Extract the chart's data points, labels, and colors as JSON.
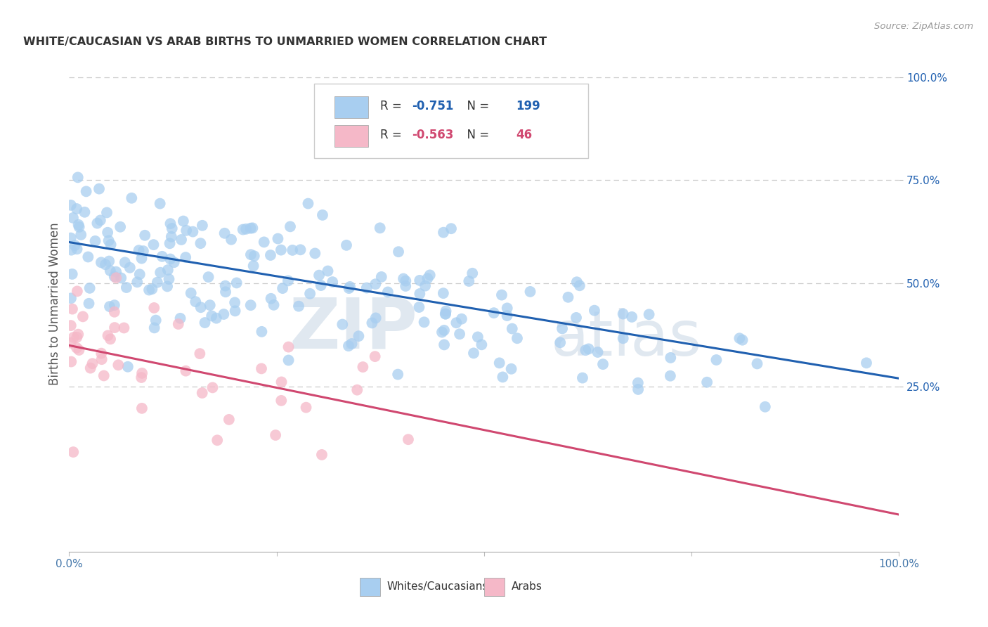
{
  "title": "WHITE/CAUCASIAN VS ARAB BIRTHS TO UNMARRIED WOMEN CORRELATION CHART",
  "source": "Source: ZipAtlas.com",
  "ylabel": "Births to Unmarried Women",
  "blue_R": "-0.751",
  "blue_N": "199",
  "pink_R": "-0.563",
  "pink_N": "46",
  "blue_color": "#a8cef0",
  "pink_color": "#f5b8c8",
  "blue_line_color": "#2060b0",
  "pink_line_color": "#d04870",
  "legend_label_blue": "Whites/Caucasians",
  "legend_label_pink": "Arabs",
  "blue_line_x0": 0,
  "blue_line_x1": 100,
  "blue_line_y0": 60,
  "blue_line_y1": 27,
  "pink_line_x0": 0,
  "pink_line_x1": 100,
  "pink_line_y0": 35,
  "pink_line_y1": -6,
  "xlim": [
    0,
    100
  ],
  "ylim": [
    -15,
    105
  ],
  "yticks": [
    25,
    50,
    75,
    100
  ],
  "ytick_labels": [
    "25.0%",
    "50.0%",
    "75.0%",
    "100.0%"
  ],
  "grid_color": "#cccccc",
  "watermark_color": "#e0e8f0"
}
